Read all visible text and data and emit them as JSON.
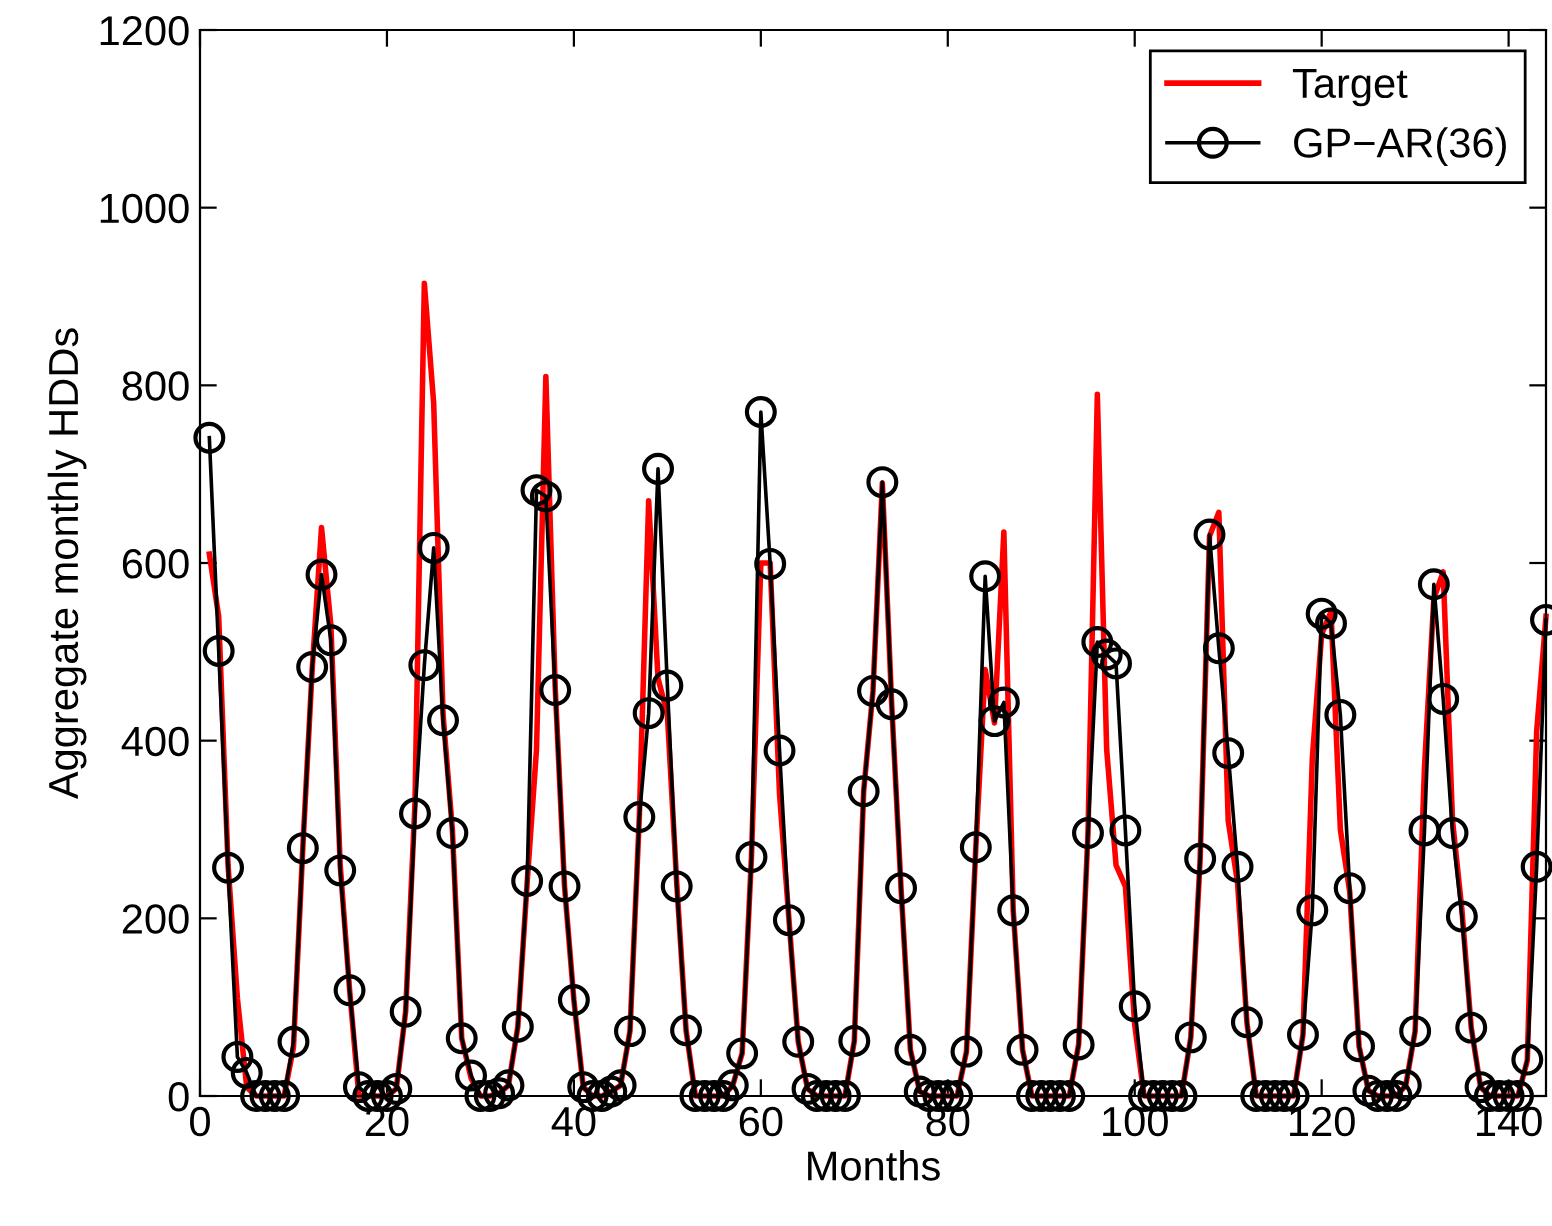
{
  "chart_data": {
    "type": "line",
    "xlabel": "Months",
    "ylabel": "Aggregate monthly HDDs",
    "xlim": [
      0,
      144
    ],
    "xticks": [
      0,
      20,
      40,
      60,
      80,
      100,
      120,
      140
    ],
    "ylim": [
      0,
      1200
    ],
    "yticks": [
      0,
      200,
      400,
      600,
      800,
      1000,
      1200
    ],
    "grid": false,
    "legend": "top right",
    "x": [
      1,
      2,
      3,
      4,
      5,
      6,
      7,
      8,
      9,
      10,
      11,
      12,
      13,
      14,
      15,
      16,
      17,
      18,
      19,
      20,
      21,
      22,
      23,
      24,
      25,
      26,
      27,
      28,
      29,
      30,
      31,
      32,
      33,
      34,
      35,
      36,
      37,
      38,
      39,
      40,
      41,
      42,
      43,
      44,
      45,
      46,
      47,
      48,
      49,
      50,
      51,
      52,
      53,
      54,
      55,
      56,
      57,
      58,
      59,
      60,
      61,
      62,
      63,
      64,
      65,
      66,
      67,
      68,
      69,
      70,
      71,
      72,
      73,
      74,
      75,
      76,
      77,
      78,
      79,
      80,
      81,
      82,
      83,
      84,
      85,
      86,
      87,
      88,
      89,
      90,
      91,
      92,
      93,
      94,
      95,
      96,
      97,
      98,
      99,
      100,
      101,
      102,
      103,
      104,
      105,
      106,
      107,
      108,
      109,
      110,
      111,
      112,
      113,
      114,
      115,
      116,
      117,
      118,
      119,
      120,
      121,
      122,
      123,
      124,
      125,
      126,
      127,
      128,
      129,
      130,
      131,
      132,
      133,
      134,
      135,
      136,
      137,
      138,
      139,
      140,
      141,
      142,
      143,
      144
    ],
    "series": [
      {
        "name": "Target",
        "color": "#ff0000",
        "marker": "none",
        "values": [
          610,
          540,
          260,
          110,
          10,
          0,
          0,
          0,
          0,
          55,
          280,
          480,
          640,
          530,
          260,
          120,
          0,
          0,
          0,
          0,
          8,
          95,
          330,
          915,
          780,
          430,
          300,
          65,
          20,
          0,
          0,
          3,
          12,
          78,
          240,
          390,
          810,
          460,
          236,
          108,
          10,
          0,
          0,
          5,
          12,
          73,
          314,
          670,
          470,
          430,
          240,
          74,
          0,
          0,
          0,
          0,
          12,
          48,
          270,
          600,
          600,
          340,
          200,
          61,
          8,
          0,
          0,
          0,
          0,
          62,
          343,
          456,
          690,
          441,
          234,
          52,
          5,
          0,
          0,
          0,
          0,
          50,
          280,
          480,
          420,
          635,
          209,
          52,
          0,
          0,
          0,
          0,
          0,
          58,
          296,
          790,
          390,
          260,
          236,
          80,
          0,
          0,
          0,
          0,
          0,
          66,
          267,
          630,
          657,
          310,
          240,
          83,
          0,
          0,
          0,
          0,
          0,
          69,
          380,
          520,
          545,
          300,
          230,
          56,
          6,
          0,
          0,
          0,
          12,
          73,
          370,
          560,
          590,
          310,
          210,
          77,
          10,
          0,
          0,
          0,
          0,
          40,
          410,
          540
        ]
      },
      {
        "name": "GP−AR(36)",
        "color": "#000000",
        "marker": "circle",
        "values": [
          741,
          501,
          257,
          44,
          26,
          0,
          0,
          0,
          0,
          61,
          279,
          483,
          587,
          513,
          254,
          119,
          10,
          0,
          0,
          0,
          8,
          95,
          318,
          485,
          617,
          423,
          296,
          65,
          23,
          0,
          0,
          3,
          12,
          78,
          242,
          682,
          675,
          457,
          236,
          108,
          10,
          0,
          0,
          5,
          12,
          73,
          314,
          431,
          706,
          462,
          236,
          74,
          0,
          0,
          0,
          0,
          12,
          48,
          269,
          770,
          599,
          389,
          198,
          61,
          8,
          0,
          0,
          0,
          0,
          62,
          343,
          456,
          691,
          441,
          234,
          52,
          5,
          0,
          0,
          0,
          0,
          50,
          280,
          585,
          422,
          443,
          209,
          52,
          0,
          0,
          0,
          0,
          0,
          58,
          296,
          511,
          497,
          487,
          299,
          101,
          0,
          0,
          0,
          0,
          0,
          66,
          267,
          632,
          504,
          386,
          258,
          83,
          0,
          0,
          0,
          0,
          0,
          69,
          209,
          543,
          532,
          429,
          234,
          56,
          6,
          0,
          0,
          0,
          12,
          73,
          299,
          576,
          447,
          296,
          202,
          77,
          10,
          0,
          0,
          0,
          0,
          41,
          258,
          536
        ]
      }
    ]
  }
}
